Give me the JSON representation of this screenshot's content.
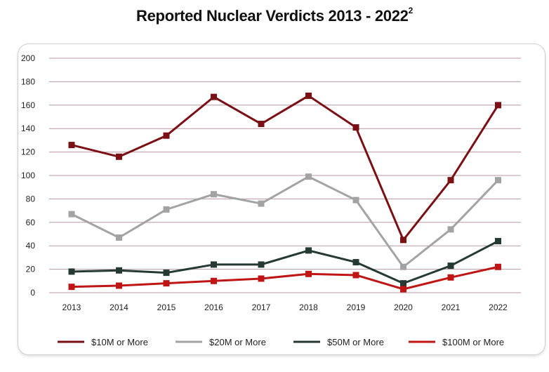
{
  "title": "Reported Nuclear Verdicts 2013 - 2022",
  "title_superscript": "2",
  "chart_data": {
    "type": "line",
    "title": "Reported Nuclear Verdicts 2013 - 2022",
    "xlabel": "",
    "ylabel": "",
    "x": [
      "2013",
      "2014",
      "2015",
      "2016",
      "2017",
      "2018",
      "2019",
      "2020",
      "2021",
      "2022"
    ],
    "ylim": [
      0,
      200
    ],
    "yticks": [
      0,
      20,
      40,
      60,
      80,
      100,
      120,
      140,
      160,
      180,
      200
    ],
    "grid": true,
    "legend_position": "bottom",
    "series": [
      {
        "name": "$10M or More",
        "color": "#7a0f14",
        "values": [
          126,
          116,
          134,
          167,
          144,
          168,
          141,
          45,
          96,
          160
        ]
      },
      {
        "name": "$20M or More",
        "color": "#a3a3a3",
        "values": [
          67,
          47,
          71,
          84,
          76,
          99,
          79,
          22,
          54,
          96
        ]
      },
      {
        "name": "$50M or More",
        "color": "#243a32",
        "values": [
          18,
          19,
          17,
          24,
          24,
          36,
          26,
          8,
          23,
          44
        ]
      },
      {
        "name": "$100M or More",
        "color": "#c01515",
        "values": [
          5,
          6,
          8,
          10,
          12,
          16,
          15,
          3,
          13,
          22
        ]
      }
    ]
  }
}
